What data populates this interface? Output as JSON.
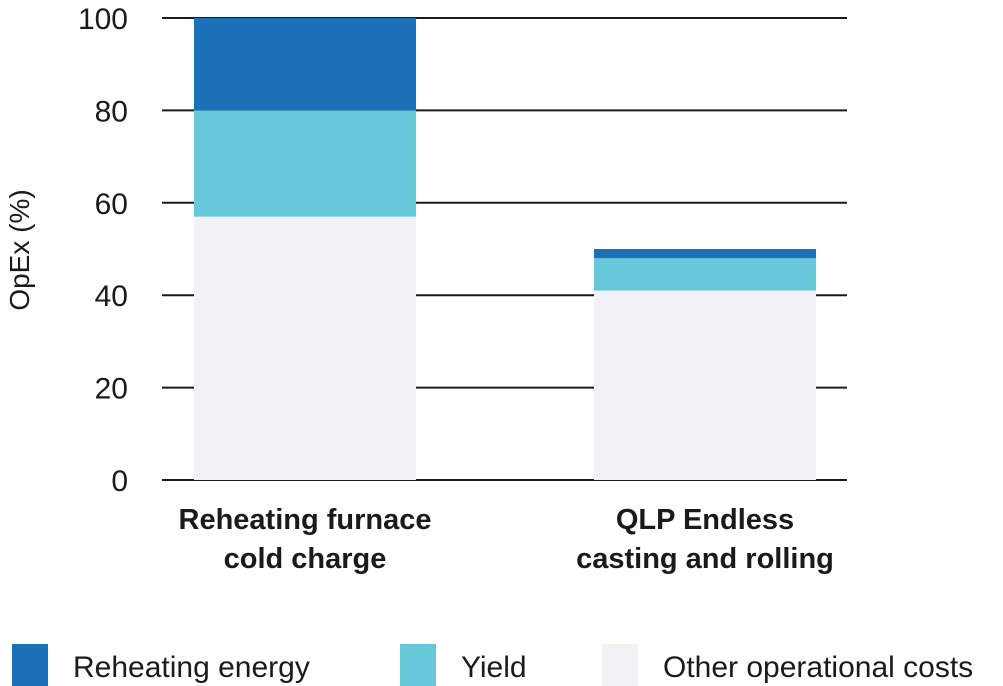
{
  "chart_data": {
    "type": "bar",
    "stacked": true,
    "categories": [
      [
        "Reheating furnace",
        "cold charge"
      ],
      [
        "QLP Endless",
        "casting and rolling"
      ]
    ],
    "series": [
      {
        "name": "Other operational costs",
        "color": "#f2f2f6",
        "values": [
          57,
          41
        ]
      },
      {
        "name": "Yield",
        "color": "#66c8d8",
        "values": [
          23,
          7
        ]
      },
      {
        "name": "Reheating energy",
        "color": "#1b70b8",
        "values": [
          20,
          2
        ]
      }
    ],
    "ylabel": "OpEx (%)",
    "ylim": [
      0,
      100
    ],
    "yticks": [
      0,
      20,
      40,
      60,
      80,
      100
    ],
    "grid": true,
    "legend_order": [
      "Reheating energy",
      "Yield",
      "Other operational costs"
    ],
    "legend_position": "bottom"
  }
}
